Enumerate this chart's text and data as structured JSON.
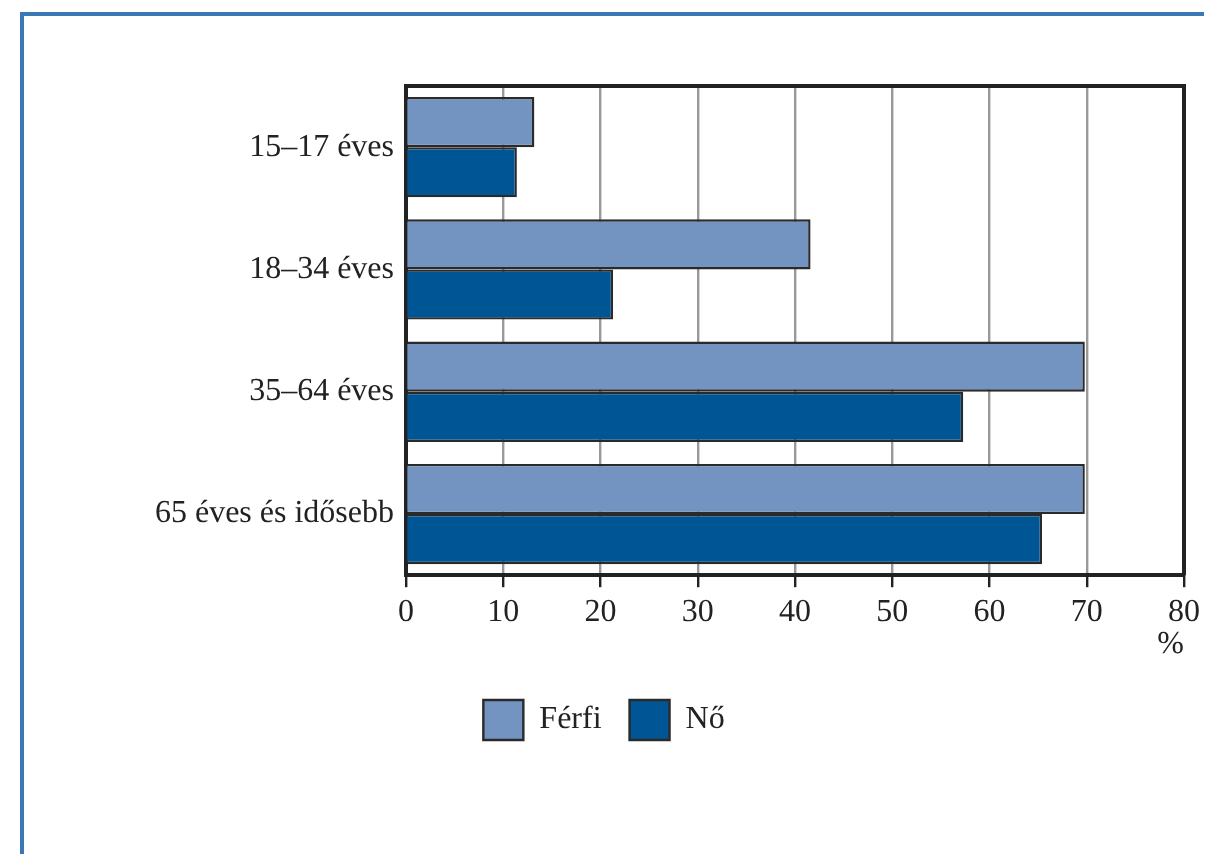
{
  "chart_data": {
    "type": "bar",
    "orientation": "horizontal",
    "categories": [
      "15–17 éves",
      "18–34 éves",
      "35–64 éves",
      "65 éves és idősebb"
    ],
    "series": [
      {
        "name": "Férfi",
        "color": "#7393c1",
        "values": [
          13.2,
          41.6,
          69.8,
          69.8
        ]
      },
      {
        "name": "Nő",
        "color": "#005595",
        "values": [
          11.4,
          21.3,
          57.3,
          65.4
        ]
      }
    ],
    "xlabel": "%",
    "xlim": [
      0,
      80
    ],
    "xticks": [
      0,
      10,
      20,
      30,
      40,
      50,
      60,
      70,
      80
    ],
    "grid": "x",
    "legend": "bottom"
  }
}
